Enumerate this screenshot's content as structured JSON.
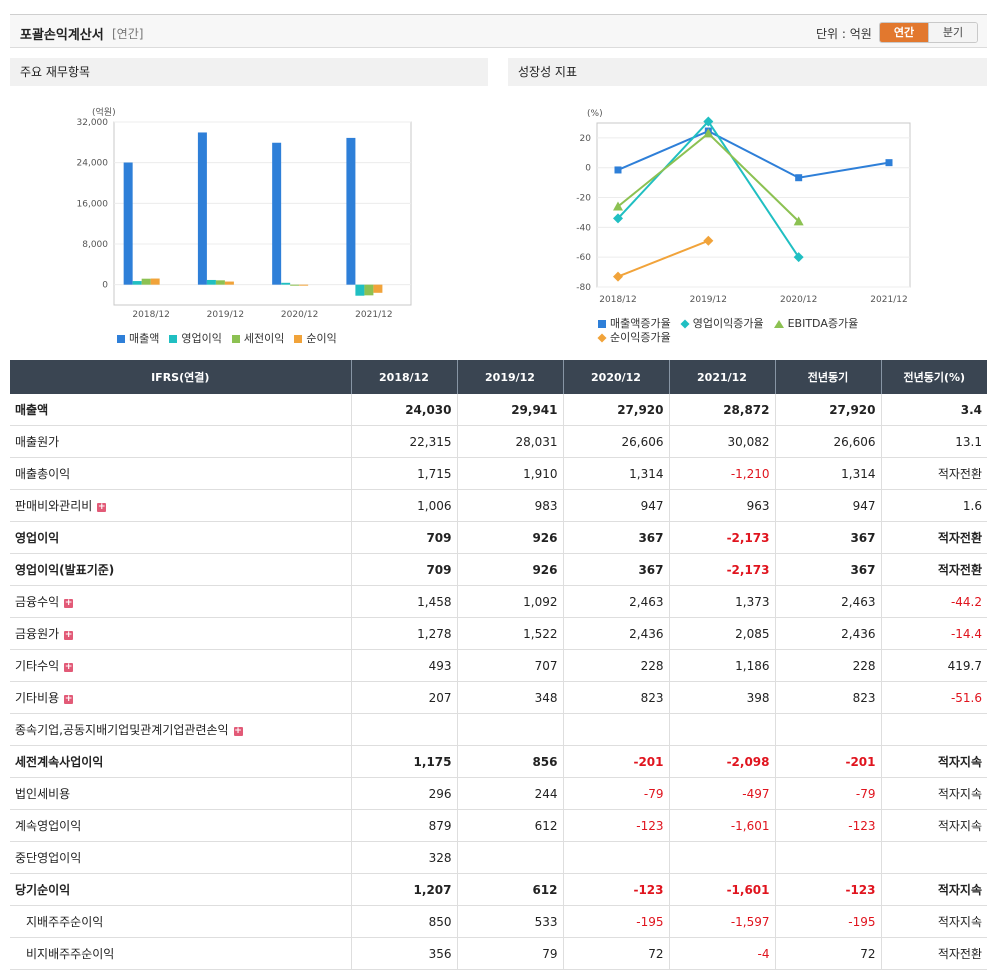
{
  "header": {
    "title": "포괄손익계산서",
    "period_tag": "[연간]",
    "unit_label": "단위 : 억원",
    "toggle_annual": "연간",
    "toggle_quarter": "분기"
  },
  "panels": {
    "left_title": "주요 재무항목",
    "right_title": "성장성 지표"
  },
  "chart_data": [
    {
      "type": "bar",
      "title": "",
      "ylabel": "(억원)",
      "categories": [
        "2018/12",
        "2019/12",
        "2020/12",
        "2021/12"
      ],
      "ylim": [
        -4000,
        32000
      ],
      "yticks": [
        0,
        8000,
        16000,
        24000,
        32000
      ],
      "ytick_labels": [
        "0",
        "8,000",
        "16,000",
        "24,000",
        "32,000"
      ],
      "legend_position": "bottom",
      "series": [
        {
          "name": "매출액",
          "color": "#2e7fd8",
          "values": [
            24030,
            29941,
            27920,
            28872
          ]
        },
        {
          "name": "영업이익",
          "color": "#20bfc2",
          "values": [
            709,
            926,
            367,
            -2173
          ]
        },
        {
          "name": "세전이익",
          "color": "#8cc152",
          "values": [
            1175,
            856,
            -201,
            -2098
          ]
        },
        {
          "name": "순이익",
          "color": "#f1a33a",
          "values": [
            1207,
            612,
            -123,
            -1601
          ]
        }
      ]
    },
    {
      "type": "line",
      "title": "",
      "ylabel": "(%)",
      "categories": [
        "2018/12",
        "2019/12",
        "2020/12",
        "2021/12"
      ],
      "ylim": [
        -80,
        30
      ],
      "yticks": [
        -80,
        -60,
        -40,
        -20,
        0,
        20
      ],
      "ytick_labels": [
        "-80",
        "-60",
        "-40",
        "-20",
        "0",
        "20"
      ],
      "legend_position": "bottom",
      "series": [
        {
          "name": "매출액증가율",
          "color": "#2e7fd8",
          "marker": "square",
          "values": [
            -1.5,
            24.6,
            -6.7,
            3.4
          ]
        },
        {
          "name": "영업이익증가율",
          "color": "#20bfc2",
          "marker": "diamond",
          "values": [
            -34,
            31,
            -60,
            null
          ]
        },
        {
          "name": "EBITDA증가율",
          "color": "#8cc152",
          "marker": "triangle",
          "values": [
            -26,
            23,
            -36,
            null
          ]
        },
        {
          "name": "순이익증가율",
          "color": "#f1a33a",
          "marker": "diamond",
          "values": [
            -73,
            -49,
            null,
            null
          ]
        }
      ]
    }
  ],
  "table": {
    "headers": [
      "IFRS(연결)",
      "2018/12",
      "2019/12",
      "2020/12",
      "2021/12",
      "전년동기",
      "전년동기(%)"
    ],
    "rows": [
      {
        "label": "매출액",
        "bold": true,
        "expand": false,
        "sub": false,
        "cells": [
          "24,030",
          "29,941",
          "27,920",
          "28,872",
          "27,920",
          "3.4"
        ]
      },
      {
        "label": "매출원가",
        "bold": false,
        "expand": false,
        "sub": false,
        "cells": [
          "22,315",
          "28,031",
          "26,606",
          "30,082",
          "26,606",
          "13.1"
        ]
      },
      {
        "label": "매출총이익",
        "bold": false,
        "expand": false,
        "sub": false,
        "cells": [
          "1,715",
          "1,910",
          "1,314",
          "-1,210",
          "1,314",
          "적자전환"
        ]
      },
      {
        "label": "판매비와관리비",
        "bold": false,
        "expand": true,
        "sub": false,
        "cells": [
          "1,006",
          "983",
          "947",
          "963",
          "947",
          "1.6"
        ]
      },
      {
        "label": "영업이익",
        "bold": true,
        "expand": false,
        "sub": false,
        "cells": [
          "709",
          "926",
          "367",
          "-2,173",
          "367",
          "적자전환"
        ]
      },
      {
        "label": "영업이익(발표기준)",
        "bold": true,
        "expand": false,
        "sub": false,
        "cells": [
          "709",
          "926",
          "367",
          "-2,173",
          "367",
          "적자전환"
        ]
      },
      {
        "label": "금융수익",
        "bold": false,
        "expand": true,
        "sub": false,
        "cells": [
          "1,458",
          "1,092",
          "2,463",
          "1,373",
          "2,463",
          "-44.2"
        ]
      },
      {
        "label": "금융원가",
        "bold": false,
        "expand": true,
        "sub": false,
        "cells": [
          "1,278",
          "1,522",
          "2,436",
          "2,085",
          "2,436",
          "-14.4"
        ]
      },
      {
        "label": "기타수익",
        "bold": false,
        "expand": true,
        "sub": false,
        "cells": [
          "493",
          "707",
          "228",
          "1,186",
          "228",
          "419.7"
        ]
      },
      {
        "label": "기타비용",
        "bold": false,
        "expand": true,
        "sub": false,
        "cells": [
          "207",
          "348",
          "823",
          "398",
          "823",
          "-51.6"
        ]
      },
      {
        "label": "종속기업,공동지배기업및관계기업관련손익",
        "bold": false,
        "expand": true,
        "sub": false,
        "cells": [
          "",
          "",
          "",
          "",
          "",
          ""
        ]
      },
      {
        "label": "세전계속사업이익",
        "bold": true,
        "expand": false,
        "sub": false,
        "cells": [
          "1,175",
          "856",
          "-201",
          "-2,098",
          "-201",
          "적자지속"
        ]
      },
      {
        "label": "법인세비용",
        "bold": false,
        "expand": false,
        "sub": false,
        "cells": [
          "296",
          "244",
          "-79",
          "-497",
          "-79",
          "적자지속"
        ]
      },
      {
        "label": "계속영업이익",
        "bold": false,
        "expand": false,
        "sub": false,
        "cells": [
          "879",
          "612",
          "-123",
          "-1,601",
          "-123",
          "적자지속"
        ]
      },
      {
        "label": "중단영업이익",
        "bold": false,
        "expand": false,
        "sub": false,
        "cells": [
          "328",
          "",
          "",
          "",
          "",
          ""
        ]
      },
      {
        "label": "당기순이익",
        "bold": true,
        "expand": false,
        "sub": false,
        "cells": [
          "1,207",
          "612",
          "-123",
          "-1,601",
          "-123",
          "적자지속"
        ]
      },
      {
        "label": "지배주주순이익",
        "bold": false,
        "expand": false,
        "sub": true,
        "cells": [
          "850",
          "533",
          "-195",
          "-1,597",
          "-195",
          "적자지속"
        ]
      },
      {
        "label": "비지배주주순이익",
        "bold": false,
        "expand": false,
        "sub": true,
        "cells": [
          "356",
          "79",
          "72",
          "-4",
          "72",
          "적자전환"
        ]
      }
    ]
  }
}
